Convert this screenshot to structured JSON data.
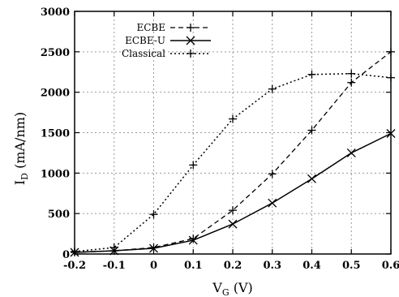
{
  "chart_data": {
    "type": "line",
    "title": "",
    "xlabel": "V",
    "xlabel_sub": "G",
    "xlabel_unit": " (V)",
    "ylabel": "I",
    "ylabel_sub": "D",
    "ylabel_unit": " (mA/nm)",
    "xlim": [
      -0.2,
      0.6
    ],
    "ylim": [
      0,
      3000
    ],
    "xticks": [
      -0.2,
      -0.1,
      0,
      0.1,
      0.2,
      0.3,
      0.4,
      0.5,
      0.6
    ],
    "xtick_labels": [
      "-0.2",
      "-0.1",
      "0",
      "0.1",
      "0.2",
      "0.3",
      "0.4",
      "0.5",
      "0.6"
    ],
    "yticks": [
      0,
      500,
      1000,
      1500,
      2000,
      2500,
      3000
    ],
    "ytick_labels": [
      "0",
      "500",
      "1000",
      "1500",
      "2000",
      "2500",
      "3000"
    ],
    "grid": true,
    "legend_position": "top-left",
    "series": [
      {
        "name": "ECBE",
        "style": "dashed",
        "marker": "+",
        "x": [
          -0.2,
          -0.1,
          0.0,
          0.1,
          0.2,
          0.3,
          0.4,
          0.5,
          0.6
        ],
        "y": [
          20,
          40,
          80,
          190,
          540,
          990,
          1530,
          2120,
          2500
        ]
      },
      {
        "name": "ECBE-U",
        "style": "solid",
        "marker": "x",
        "x": [
          -0.2,
          -0.1,
          0.0,
          0.1,
          0.2,
          0.3,
          0.4,
          0.5,
          0.6
        ],
        "y": [
          20,
          40,
          70,
          170,
          370,
          630,
          930,
          1250,
          1490
        ]
      },
      {
        "name": "Classical",
        "style": "dotted",
        "marker": "+",
        "x": [
          -0.2,
          -0.1,
          0.0,
          0.1,
          0.2,
          0.3,
          0.4,
          0.5,
          0.6
        ],
        "y": [
          30,
          80,
          490,
          1100,
          1670,
          2040,
          2220,
          2230,
          2180
        ]
      }
    ]
  }
}
